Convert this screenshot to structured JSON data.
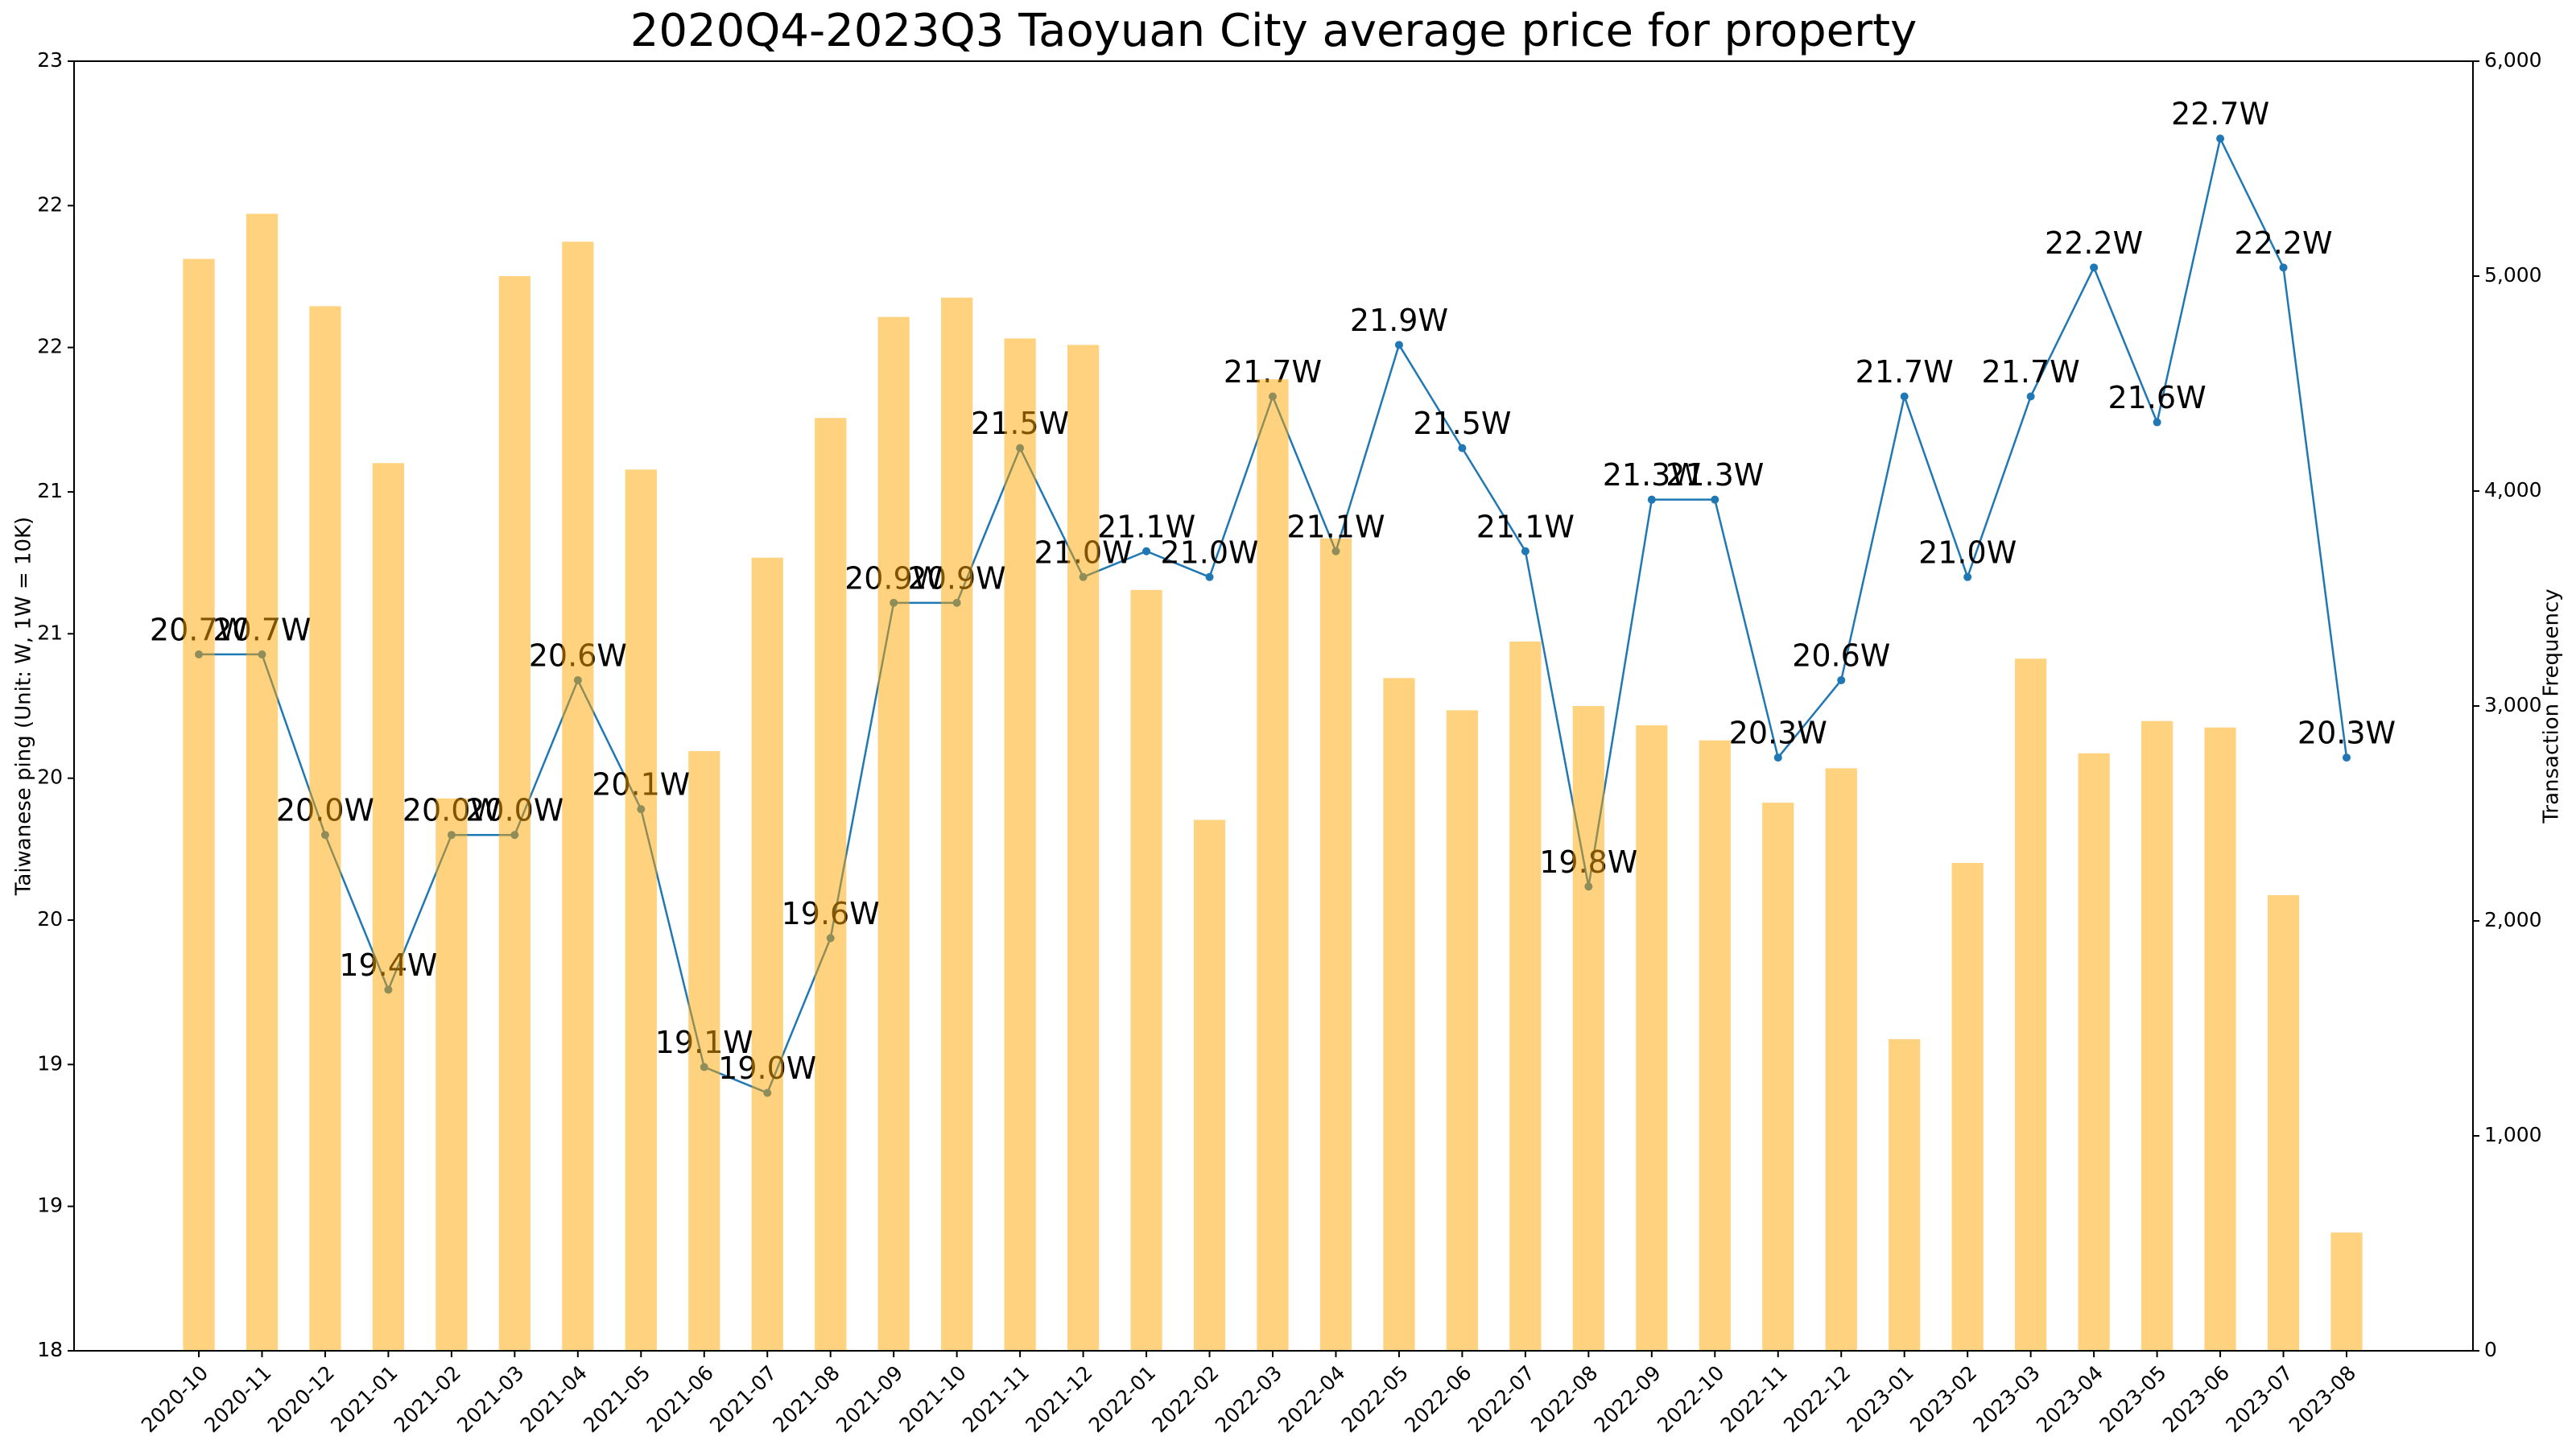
{
  "chart_data": {
    "type": "combo",
    "title": "2020Q4-2023Q3 Taoyuan City average price for property",
    "y_label": "Taiwanese ping (Unit: W, 1W = 10K)",
    "y2_label": "Transaction Frequency",
    "categories": [
      "2020-10",
      "2020-11",
      "2020-12",
      "2021-01",
      "2021-02",
      "2021-03",
      "2021-04",
      "2021-05",
      "2021-06",
      "2021-07",
      "2021-08",
      "2021-09",
      "2021-10",
      "2021-11",
      "2021-12",
      "2022-01",
      "2022-02",
      "2022-03",
      "2022-04",
      "2022-05",
      "2022-06",
      "2022-07",
      "2022-08",
      "2022-09",
      "2022-10",
      "2022-11",
      "2022-12",
      "2023-01",
      "2023-02",
      "2023-03",
      "2023-04",
      "2023-05",
      "2023-06",
      "2023-07",
      "2023-08"
    ],
    "series": [
      {
        "type": "line",
        "color": "#1f77b4",
        "values": [
          20.7,
          20.7,
          20.0,
          19.4,
          20.0,
          20.0,
          20.6,
          20.1,
          19.1,
          19.0,
          19.6,
          20.9,
          20.9,
          21.5,
          21.0,
          21.1,
          21.0,
          21.7,
          21.1,
          21.9,
          21.5,
          21.1,
          19.8,
          21.3,
          21.3,
          20.3,
          20.6,
          21.7,
          21.0,
          21.7,
          22.2,
          21.6,
          22.7,
          22.2,
          20.3
        ],
        "value_labels": [
          "20.7W",
          "20.7W",
          "20.0W",
          "19.4W",
          "20.0W",
          "20.0W",
          "20.6W",
          "20.1W",
          "19.1W",
          "19.0W",
          "19.6W",
          "20.9W",
          "20.9W",
          "21.5W",
          "21.0W",
          "21.1W",
          "21.0W",
          "21.7W",
          "21.1W",
          "21.9W",
          "21.5W",
          "21.1W",
          "19.8W",
          "21.3W",
          "21.3W",
          "20.3W",
          "20.6W",
          "21.7W",
          "21.0W",
          "21.7W",
          "22.2W",
          "21.6W",
          "22.7W",
          "22.2W",
          "20.3W"
        ]
      },
      {
        "type": "bar",
        "axis": "y2",
        "color": "#ffa500",
        "opacity": 0.5,
        "values": [
          5080,
          5290,
          4860,
          4130,
          2570,
          5000,
          5160,
          4100,
          2790,
          3690,
          4340,
          4810,
          4900,
          4710,
          4680,
          3540,
          2470,
          4520,
          3780,
          3130,
          2980,
          3300,
          3000,
          2910,
          2840,
          2550,
          2710,
          1450,
          2270,
          3220,
          2780,
          2930,
          2900,
          2120,
          550
        ]
      }
    ],
    "ylim": [
      18,
      23
    ],
    "yticks": [
      {
        "value": 18,
        "label": "18"
      },
      {
        "value": 18.56,
        "label": "19"
      },
      {
        "value": 19.11,
        "label": "19"
      },
      {
        "value": 19.67,
        "label": "20"
      },
      {
        "value": 20.22,
        "label": "20"
      },
      {
        "value": 20.78,
        "label": "21"
      },
      {
        "value": 21.33,
        "label": "21"
      },
      {
        "value": 21.89,
        "label": "22"
      },
      {
        "value": 22.44,
        "label": "22"
      },
      {
        "value": 23,
        "label": "23"
      }
    ],
    "y2lim": [
      0,
      6000
    ],
    "y2ticks": [
      0,
      {
        "value": 1000,
        "label": "1,000"
      },
      {
        "value": 2000,
        "label": "2,000"
      },
      {
        "value": 3000,
        "label": "3,000"
      },
      {
        "value": 4000,
        "label": "4,000"
      },
      {
        "value": 5000,
        "label": "5,000"
      },
      {
        "value": 6000,
        "label": "6,000"
      }
    ]
  }
}
